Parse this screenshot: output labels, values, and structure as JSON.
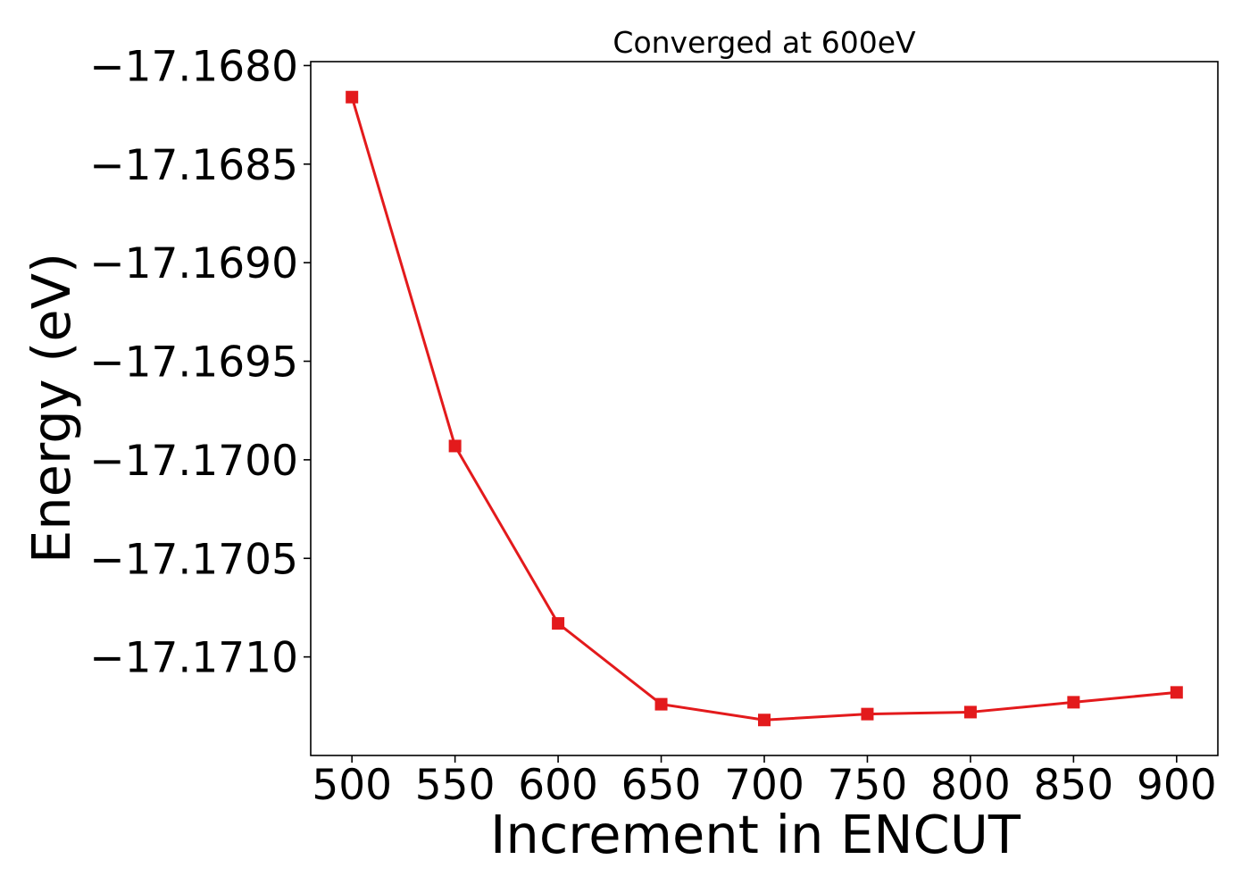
{
  "chart_data": {
    "type": "line",
    "title": "Converged at 600eV",
    "xlabel": "Increment in ENCUT",
    "ylabel": "Energy (eV)",
    "x": [
      500,
      550,
      600,
      650,
      700,
      750,
      800,
      850,
      900
    ],
    "series": [
      {
        "values": [
          -17.16816,
          -17.16993,
          -17.17083,
          -17.17124,
          -17.17132,
          -17.17129,
          -17.17128,
          -17.17123,
          -17.17118
        ],
        "color": "#e31a1c",
        "marker": "square"
      }
    ],
    "xlim": [
      480,
      920
    ],
    "ylim": [
      -17.1715,
      -17.16798
    ],
    "xticks": [
      500,
      550,
      600,
      650,
      700,
      750,
      800,
      850,
      900
    ],
    "xtick_labels": [
      "500",
      "550",
      "600",
      "650",
      "700",
      "750",
      "800",
      "850",
      "900"
    ],
    "yticks": [
      -17.168,
      -17.1685,
      -17.169,
      -17.1695,
      -17.17,
      -17.1705,
      -17.171
    ],
    "ytick_labels": [
      "−17.1680",
      "−17.1685",
      "−17.1690",
      "−17.1695",
      "−17.1700",
      "−17.1705",
      "−17.1710"
    ],
    "grid": false,
    "legend": "none"
  }
}
